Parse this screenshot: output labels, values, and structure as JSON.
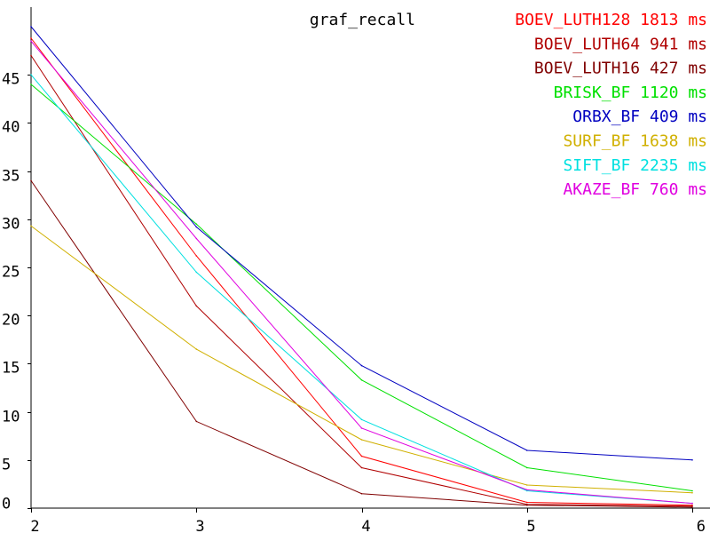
{
  "chart_data": {
    "type": "line",
    "title": "graf_recall",
    "xlabel": "",
    "ylabel": "",
    "x": [
      2,
      3,
      4,
      5,
      6
    ],
    "xlim": [
      2,
      6
    ],
    "ylim": [
      0,
      50
    ],
    "x_ticks": [
      2,
      3,
      4,
      5,
      6
    ],
    "y_ticks": [
      0,
      5,
      10,
      15,
      20,
      25,
      30,
      35,
      40,
      45
    ],
    "grid": false,
    "legend_position": "top-right",
    "series": [
      {
        "name": "BOEV_LUTH128 1813 ms",
        "color": "#ff0000",
        "values": [
          48.8,
          26.2,
          5.4,
          0.6,
          0.3
        ]
      },
      {
        "name": "BOEV_LUTH64 941 ms",
        "color": "#b00000",
        "values": [
          47.0,
          21.0,
          4.2,
          0.4,
          0.2
        ]
      },
      {
        "name": "BOEV_LUTH16 427 ms",
        "color": "#800000",
        "values": [
          34.0,
          9.0,
          1.5,
          0.3,
          0.1
        ]
      },
      {
        "name": "BRISK_BF 1120 ms",
        "color": "#00e000",
        "values": [
          44.0,
          29.5,
          13.3,
          4.2,
          1.8
        ]
      },
      {
        "name": "ORBX_BF 409 ms",
        "color": "#0000c0",
        "values": [
          50.0,
          29.2,
          14.8,
          6.0,
          5.0
        ]
      },
      {
        "name": "SURF_BF 1638 ms",
        "color": "#d0b000",
        "values": [
          29.3,
          16.5,
          7.1,
          2.4,
          1.6
        ]
      },
      {
        "name": "SIFT_BF 2235 ms",
        "color": "#00e0e0",
        "values": [
          45.0,
          24.5,
          9.2,
          1.8,
          0.5
        ]
      },
      {
        "name": "AKAZE_BF 760 ms",
        "color": "#e000e0",
        "values": [
          48.5,
          28.0,
          8.3,
          1.9,
          0.5
        ]
      }
    ]
  }
}
